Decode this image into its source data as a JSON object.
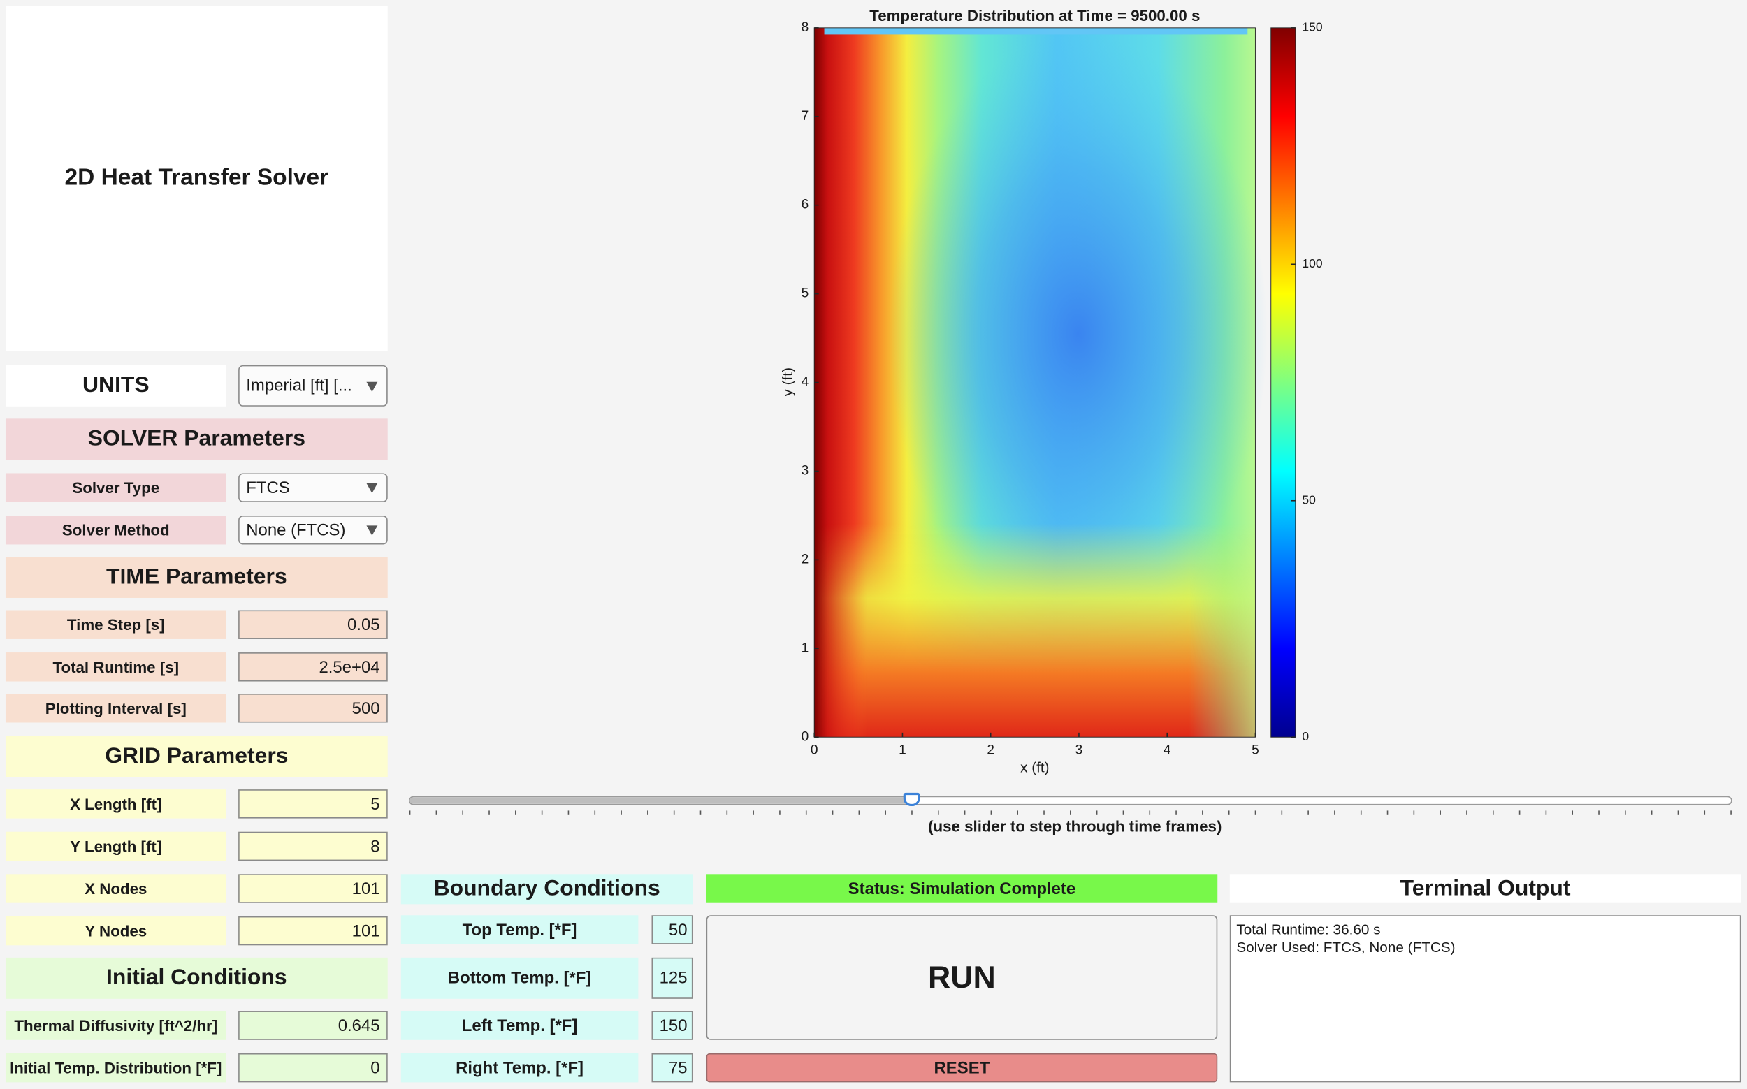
{
  "header": {
    "title": "2D Heat Transfer Solver"
  },
  "units": {
    "label": "UNITS",
    "value": "Imperial [ft] [..."
  },
  "sections": [
    {
      "heading": "SOLVER Parameters",
      "fields": [
        {
          "label": "Solver Type",
          "value": "FTCS"
        },
        {
          "label": "Solver Method",
          "value": "None (FTCS)"
        }
      ]
    },
    {
      "heading": "TIME Parameters",
      "fields": [
        {
          "label": "Time Step [s]",
          "value": "0.05"
        },
        {
          "label": "Total Runtime [s]",
          "value": "2.5e+04"
        },
        {
          "label": "Plotting Interval [s]",
          "value": "500"
        }
      ]
    },
    {
      "heading": "GRID Parameters",
      "fields": [
        {
          "label": "X Length [ft]",
          "value": "5"
        },
        {
          "label": "Y Length [ft]",
          "value": "8"
        },
        {
          "label": "X Nodes",
          "value": "101"
        },
        {
          "label": "Y Nodes",
          "value": "101"
        }
      ]
    },
    {
      "heading": "Initial Conditions",
      "fields": [
        {
          "label": "Thermal Diffusivity [ft^2/hr]",
          "value": "0.645"
        },
        {
          "label": "Initial Temp. Distribution [*F]",
          "value": "0"
        }
      ]
    }
  ],
  "boundary": {
    "heading": "Boundary Conditions",
    "fields": [
      {
        "label": "Top Temp. [*F]",
        "value": "50"
      },
      {
        "label": "Bottom Temp. [*F]",
        "value": "125"
      },
      {
        "label": "Left Temp. [*F]",
        "value": "150"
      },
      {
        "label": "Right Temp. [*F]",
        "value": "75"
      }
    ]
  },
  "status": "Status: Simulation Complete",
  "run": "RUN",
  "reset": "RESET",
  "terminal": {
    "heading": "Terminal Output",
    "lines": [
      "Total Runtime: 36.60 s",
      "Solver Used: FTCS, None (FTCS)"
    ]
  },
  "slider_hint": "(use slider to step through time frames)",
  "chart_data": {
    "type": "heatmap",
    "title": "Temperature Distribution at Time = 9500.00 s",
    "xlabel": "x (ft)",
    "ylabel": "y (ft)",
    "xlim": [
      0,
      5
    ],
    "xticks": [
      0,
      1,
      2,
      3,
      4,
      5
    ],
    "ylim": [
      0,
      8
    ],
    "yticks": [
      0,
      1,
      2,
      3,
      4,
      5,
      6,
      7,
      8
    ],
    "clim": [
      0,
      150
    ],
    "cticks": [
      0,
      50,
      100,
      150
    ],
    "colormap": "jet"
  }
}
